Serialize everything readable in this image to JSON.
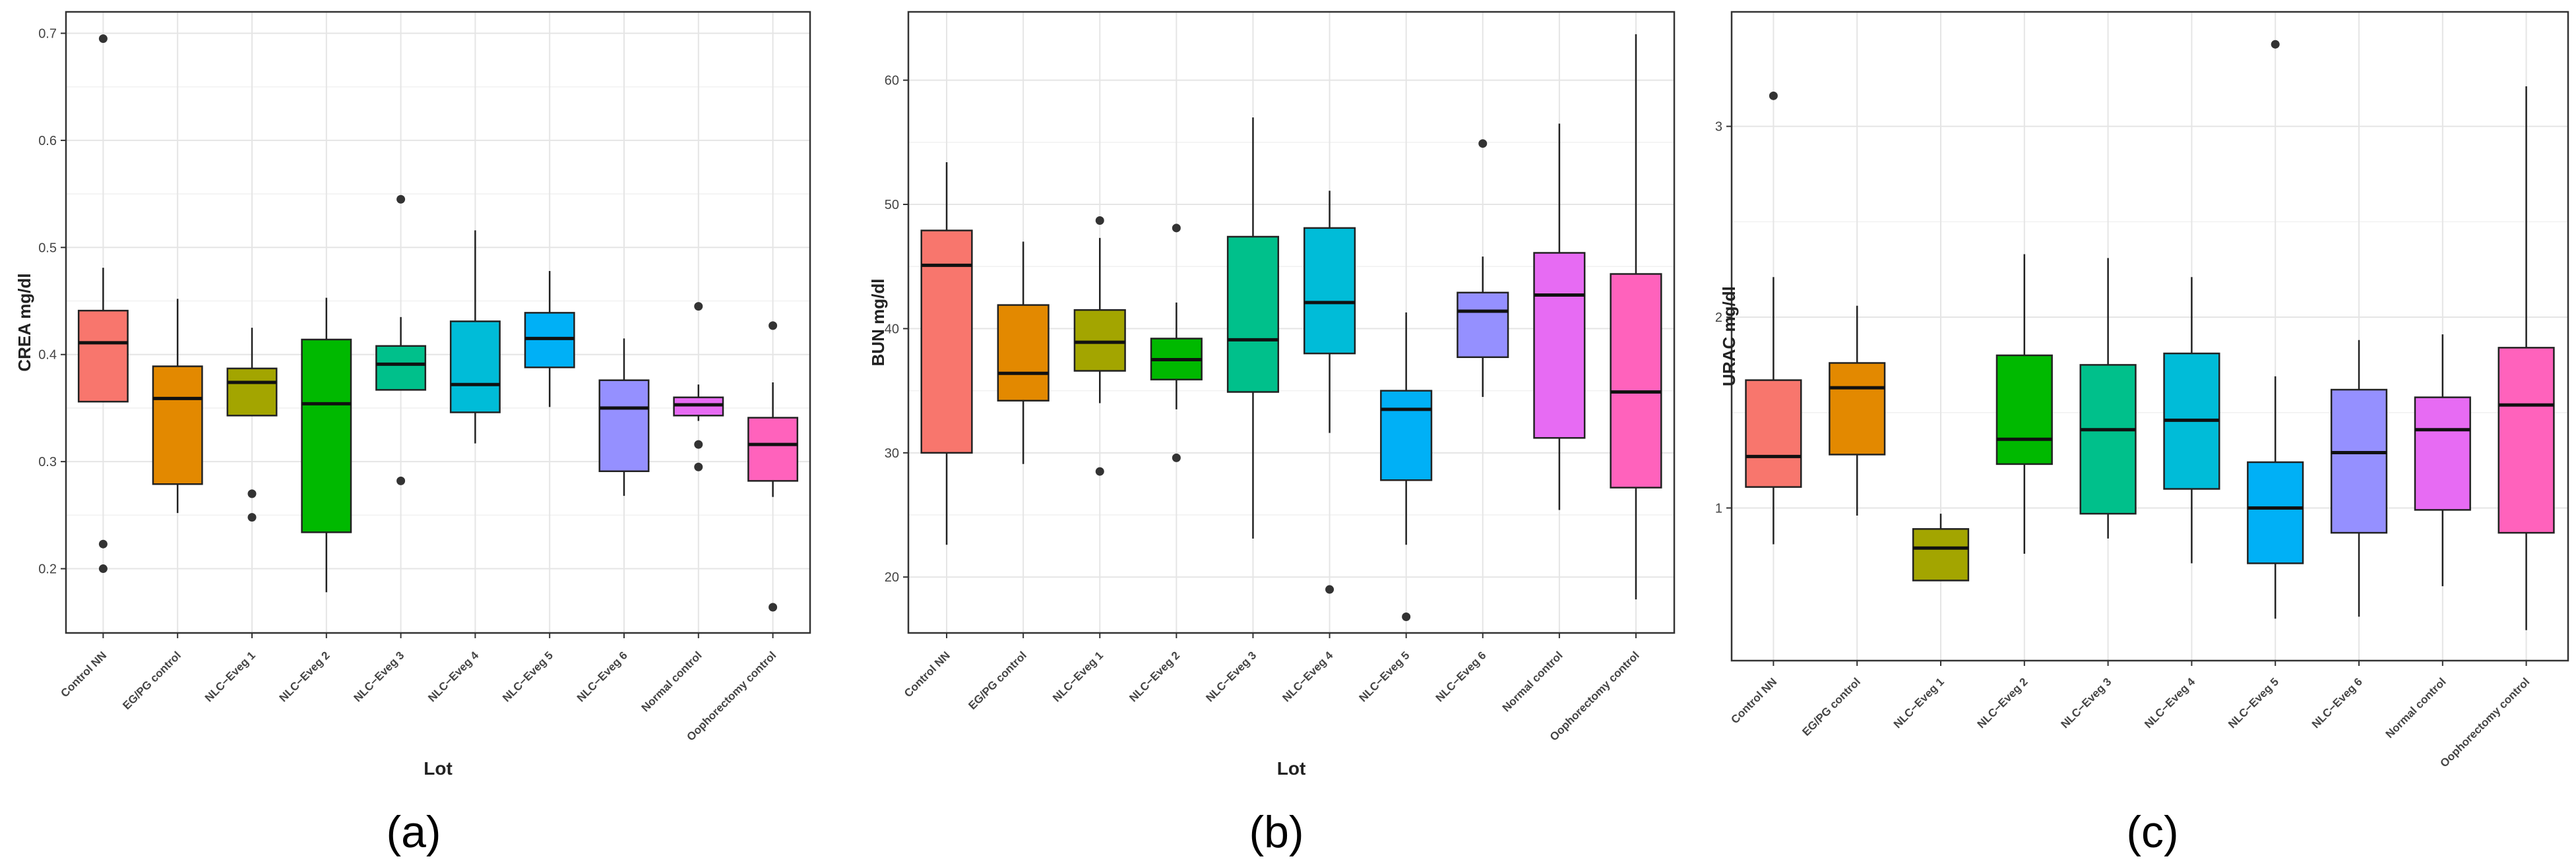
{
  "figure": {
    "panels": [
      "(a)",
      "(b)",
      "(c)"
    ]
  },
  "chart_data": [
    {
      "type": "boxplot",
      "panel_label": "(a)",
      "xlabel": "Lot",
      "ylabel": "CREA mg/dl",
      "ylim": [
        0.14,
        0.72
      ],
      "yticks": [
        0.2,
        0.3,
        0.4,
        0.5,
        0.6,
        0.7
      ],
      "ytick_labels": [
        "0.2",
        "0.3",
        "0.4",
        "0.5",
        "0.6",
        "0.7"
      ],
      "categories": [
        "Control NN",
        "EG/PG control",
        "NLC−Eveg 1",
        "NLC−Eveg 2",
        "NLC−Eveg 3",
        "NLC−Eveg 4",
        "NLC−Eveg 5",
        "NLC−Eveg 6",
        "Normal control",
        "Oophorectomy control"
      ],
      "boxes": [
        {
          "q1": 0.356,
          "median": 0.411,
          "q3": 0.441,
          "whisker_low": 0.356,
          "whisker_high": 0.481,
          "outliers": [
            0.695,
            0.223,
            0.2
          ]
        },
        {
          "q1": 0.279,
          "median": 0.359,
          "q3": 0.389,
          "whisker_low": 0.252,
          "whisker_high": 0.452,
          "outliers": []
        },
        {
          "q1": 0.343,
          "median": 0.374,
          "q3": 0.387,
          "whisker_low": 0.343,
          "whisker_high": 0.425,
          "outliers": [
            0.27,
            0.248
          ]
        },
        {
          "q1": 0.234,
          "median": 0.354,
          "q3": 0.414,
          "whisker_low": 0.178,
          "whisker_high": 0.453,
          "outliers": []
        },
        {
          "q1": 0.367,
          "median": 0.391,
          "q3": 0.408,
          "whisker_low": 0.367,
          "whisker_high": 0.435,
          "outliers": [
            0.545,
            0.282
          ]
        },
        {
          "q1": 0.346,
          "median": 0.372,
          "q3": 0.431,
          "whisker_low": 0.317,
          "whisker_high": 0.516,
          "outliers": []
        },
        {
          "q1": 0.388,
          "median": 0.415,
          "q3": 0.439,
          "whisker_low": 0.351,
          "whisker_high": 0.478,
          "outliers": []
        },
        {
          "q1": 0.291,
          "median": 0.35,
          "q3": 0.376,
          "whisker_low": 0.268,
          "whisker_high": 0.415,
          "outliers": []
        },
        {
          "q1": 0.343,
          "median": 0.353,
          "q3": 0.36,
          "whisker_low": 0.338,
          "whisker_high": 0.372,
          "outliers": [
            0.445,
            0.316,
            0.295
          ]
        },
        {
          "q1": 0.282,
          "median": 0.316,
          "q3": 0.341,
          "whisker_low": 0.267,
          "whisker_high": 0.374,
          "outliers": [
            0.427,
            0.164
          ]
        }
      ]
    },
    {
      "type": "boxplot",
      "panel_label": "(b)",
      "xlabel": "Lot",
      "ylabel": "BUN mg/dl",
      "ylim": [
        15.5,
        65.5
      ],
      "yticks": [
        20,
        30,
        40,
        50,
        60
      ],
      "ytick_labels": [
        "20",
        "30",
        "40",
        "50",
        "60"
      ],
      "categories": [
        "Control NN",
        "EG/PG control",
        "NLC−Eveg 1",
        "NLC−Eveg 2",
        "NLC−Eveg 3",
        "NLC−Eveg 4",
        "NLC−Eveg 5",
        "NLC−Eveg 6",
        "Normal control",
        "Oophorectomy control"
      ],
      "boxes": [
        {
          "q1": 30.0,
          "median": 45.1,
          "q3": 47.9,
          "whisker_low": 22.6,
          "whisker_high": 53.4,
          "outliers": []
        },
        {
          "q1": 34.2,
          "median": 36.4,
          "q3": 41.9,
          "whisker_low": 29.1,
          "whisker_high": 47.0,
          "outliers": []
        },
        {
          "q1": 36.6,
          "median": 38.9,
          "q3": 41.5,
          "whisker_low": 34.0,
          "whisker_high": 47.3,
          "outliers": [
            48.7,
            28.5
          ]
        },
        {
          "q1": 35.9,
          "median": 37.5,
          "q3": 39.2,
          "whisker_low": 33.5,
          "whisker_high": 42.1,
          "outliers": [
            48.1,
            29.6
          ]
        },
        {
          "q1": 34.9,
          "median": 39.1,
          "q3": 47.4,
          "whisker_low": 23.1,
          "whisker_high": 57.0,
          "outliers": []
        },
        {
          "q1": 38.0,
          "median": 42.1,
          "q3": 48.1,
          "whisker_low": 31.6,
          "whisker_high": 51.1,
          "outliers": [
            19.0
          ]
        },
        {
          "q1": 27.8,
          "median": 33.5,
          "q3": 35.0,
          "whisker_low": 22.6,
          "whisker_high": 41.3,
          "outliers": [
            16.8
          ]
        },
        {
          "q1": 37.7,
          "median": 41.4,
          "q3": 42.9,
          "whisker_low": 34.5,
          "whisker_high": 45.8,
          "outliers": [
            54.9
          ]
        },
        {
          "q1": 31.2,
          "median": 42.7,
          "q3": 46.1,
          "whisker_low": 25.4,
          "whisker_high": 56.5,
          "outliers": []
        },
        {
          "q1": 27.2,
          "median": 34.9,
          "q3": 44.4,
          "whisker_low": 18.2,
          "whisker_high": 63.7,
          "outliers": []
        }
      ]
    },
    {
      "type": "boxplot",
      "panel_label": "(c)",
      "xlabel": "",
      "ylabel": "URAC mg/dl",
      "ylim": [
        0.2,
        3.6
      ],
      "yticks": [
        1,
        2,
        3
      ],
      "ytick_labels": [
        "1",
        "2",
        "3"
      ],
      "categories": [
        "Control NN",
        "EG/PG control",
        "NLC−Eveg 1",
        "NLC−Eveg 2",
        "NLC−Eveg 3",
        "NLC−Eveg 4",
        "NLC−Eveg 5",
        "NLC−Eveg 6",
        "Normal control",
        "Oophorectomy control"
      ],
      "boxes": [
        {
          "q1": 1.11,
          "median": 1.27,
          "q3": 1.67,
          "whisker_low": 0.81,
          "whisker_high": 2.21,
          "outliers": [
            3.16
          ]
        },
        {
          "q1": 1.28,
          "median": 1.63,
          "q3": 1.76,
          "whisker_low": 0.96,
          "whisker_high": 2.06,
          "outliers": []
        },
        {
          "q1": 0.62,
          "median": 0.79,
          "q3": 0.89,
          "whisker_low": 0.62,
          "whisker_high": 0.97,
          "outliers": []
        },
        {
          "q1": 1.23,
          "median": 1.36,
          "q3": 1.8,
          "whisker_low": 0.76,
          "whisker_high": 2.33,
          "outliers": []
        },
        {
          "q1": 0.97,
          "median": 1.41,
          "q3": 1.75,
          "whisker_low": 0.84,
          "whisker_high": 2.31,
          "outliers": []
        },
        {
          "q1": 1.1,
          "median": 1.46,
          "q3": 1.81,
          "whisker_low": 0.71,
          "whisker_high": 2.21,
          "outliers": []
        },
        {
          "q1": 0.71,
          "median": 1.0,
          "q3": 1.24,
          "whisker_low": 0.42,
          "whisker_high": 1.69,
          "outliers": [
            3.43
          ]
        },
        {
          "q1": 0.87,
          "median": 1.29,
          "q3": 1.62,
          "whisker_low": 0.43,
          "whisker_high": 1.88,
          "outliers": []
        },
        {
          "q1": 0.99,
          "median": 1.41,
          "q3": 1.58,
          "whisker_low": 0.59,
          "whisker_high": 1.91,
          "outliers": []
        },
        {
          "q1": 0.87,
          "median": 1.54,
          "q3": 1.84,
          "whisker_low": 0.36,
          "whisker_high": 3.21,
          "outliers": []
        }
      ]
    }
  ],
  "colors": {
    "groups": [
      "#F8766D",
      "#E38900",
      "#A3A500",
      "#00B900",
      "#00C08B",
      "#00BCD8",
      "#00B0F6",
      "#9590FF",
      "#E76BF3",
      "#FF62BC"
    ],
    "grid": "#E5E5E5",
    "frame": "#333333",
    "outlier": "#333333"
  }
}
